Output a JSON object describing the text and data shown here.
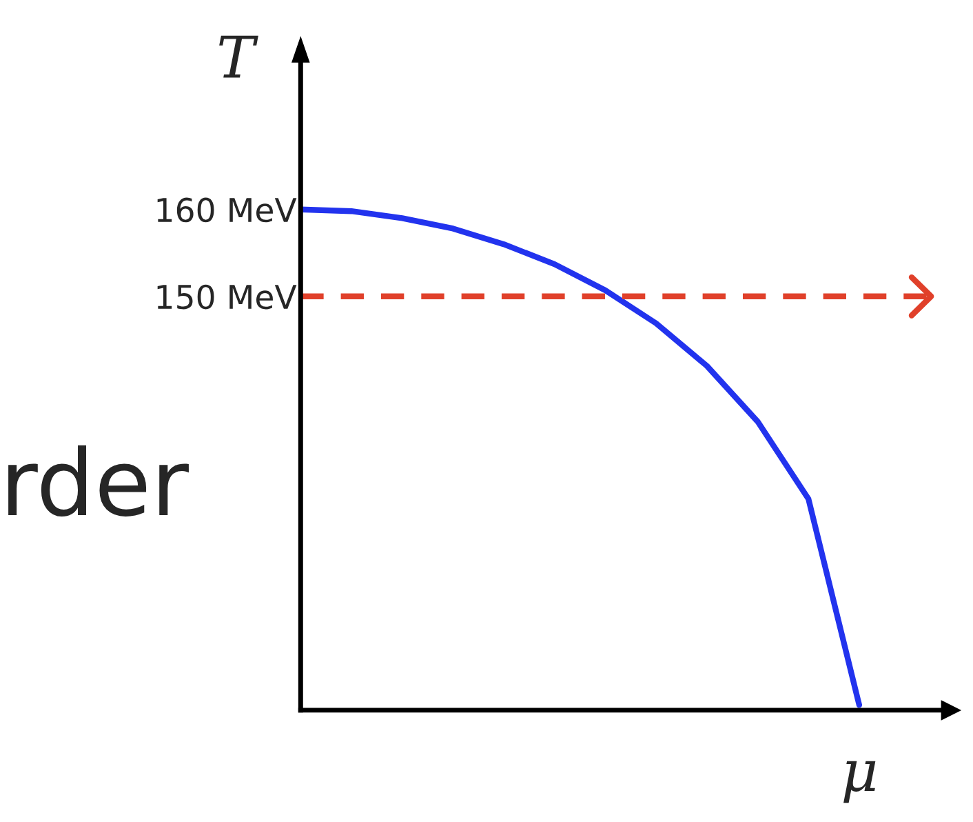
{
  "chart_data": {
    "type": "line",
    "xlabel": "μ",
    "ylabel": "T",
    "categories": [
      null,
      null,
      null,
      null,
      null,
      null,
      null,
      null,
      null,
      null,
      null,
      null,
      null
    ],
    "series": [
      {
        "color": "#2233ee",
        "values": [
          160,
          159.8,
          159.0,
          157.8,
          156.0,
          153.7,
          150.7,
          146.9,
          142.0,
          135.6,
          126.7,
          103,
          null
        ]
      }
    ],
    "ylim": [
      102.4,
      177
    ],
    "yticks": [
      {
        "value": 150,
        "label": "150 MeV"
      },
      {
        "value": 160,
        "label": "160 MeV"
      }
    ],
    "tick_labels": "y",
    "ref_lines": [
      {
        "axis": "y",
        "value": 150,
        "color": "#e0402a",
        "line_style": "dashed"
      }
    ],
    "annotations": [
      "rder"
    ],
    "grid": false,
    "marker": "none",
    "line_style": "solid"
  }
}
